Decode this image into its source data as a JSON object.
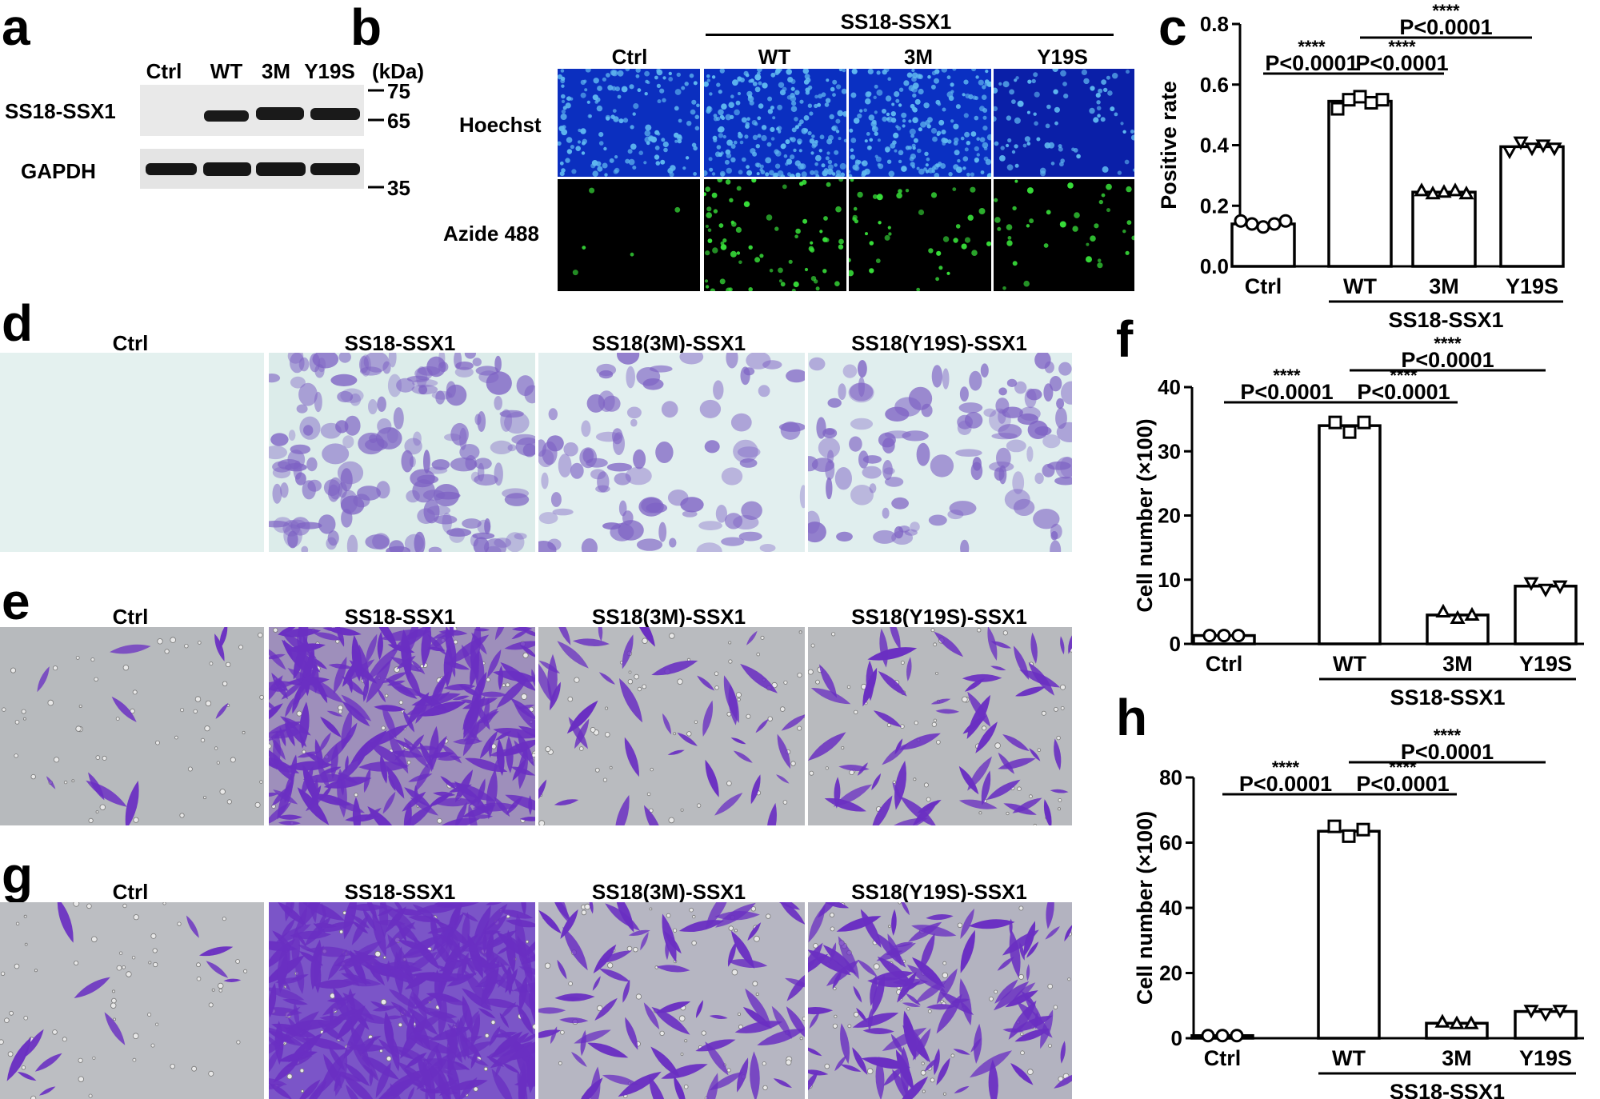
{
  "panel_letters": [
    "a",
    "b",
    "c",
    "d",
    "e",
    "f",
    "g",
    "h"
  ],
  "western": {
    "lanes": [
      "Ctrl",
      "WT",
      "3M",
      "Y19S"
    ],
    "kda_header": "(kDa)",
    "rows": [
      "SS18-SSX1",
      "GAPDH"
    ],
    "markers": [
      "75",
      "65",
      "35"
    ]
  },
  "microscopy_b": {
    "group_label": "SS18-SSX1",
    "columns": [
      "Ctrl",
      "WT",
      "3M",
      "Y19S"
    ],
    "rows": [
      "Hoechst",
      "Azide 488"
    ]
  },
  "stain_rows": {
    "columns": [
      "Ctrl",
      "SS18-SSX1",
      "SS18(3M)-SSX1",
      "SS18(Y19S)-SSX1"
    ]
  },
  "chart_data": [
    {
      "panel": "c",
      "type": "bar",
      "categories": [
        "Ctrl",
        "WT",
        "3M",
        "Y19S"
      ],
      "values": [
        0.14,
        0.545,
        0.245,
        0.395
      ],
      "points": [
        [
          0.15,
          0.14,
          0.13,
          0.14,
          0.15
        ],
        [
          0.52,
          0.55,
          0.56,
          0.54,
          0.55
        ],
        [
          0.25,
          0.24,
          0.245,
          0.25,
          0.24
        ],
        [
          0.38,
          0.41,
          0.39,
          0.4,
          0.39
        ]
      ],
      "markers": [
        "circle",
        "square",
        "triangle-up",
        "triangle-down"
      ],
      "ylabel": "Positive rate",
      "yticks": [
        "0.0",
        "0.2",
        "0.4",
        "0.6",
        "0.8"
      ],
      "ylim": [
        0,
        0.8
      ],
      "group_label": "SS18-SSX1",
      "comparisons": [
        {
          "from": 0,
          "to": 1,
          "stars": "****",
          "p": "P<0.0001"
        },
        {
          "from": 1,
          "to": 2,
          "stars": "****",
          "p": "P<0.0001"
        },
        {
          "from": 1,
          "to": 3,
          "stars": "****",
          "p": "P<0.0001"
        }
      ]
    },
    {
      "panel": "f",
      "type": "bar",
      "categories": [
        "Ctrl",
        "WT",
        "3M",
        "Y19S"
      ],
      "values": [
        1.3,
        34,
        4.5,
        9
      ],
      "points": [
        [
          1.3,
          1.3,
          1.3
        ],
        [
          34.5,
          33,
          34.5
        ],
        [
          5,
          4,
          4.5
        ],
        [
          9.5,
          8.5,
          9
        ]
      ],
      "markers": [
        "circle",
        "square",
        "triangle-up",
        "triangle-down"
      ],
      "ylabel": "Cell number (×100)",
      "yticks": [
        "0",
        "10",
        "20",
        "30",
        "40"
      ],
      "ylim": [
        0,
        40
      ],
      "group_label": "SS18-SSX1",
      "comparisons": [
        {
          "from": 0,
          "to": 1,
          "stars": "****",
          "p": "P<0.0001"
        },
        {
          "from": 1,
          "to": 2,
          "stars": "****",
          "p": "P<0.0001"
        },
        {
          "from": 1,
          "to": 3,
          "stars": "****",
          "p": "P<0.0001"
        }
      ]
    },
    {
      "panel": "h",
      "type": "bar",
      "categories": [
        "Ctrl",
        "WT",
        "3M",
        "Y19S"
      ],
      "values": [
        0.8,
        63.5,
        4.6,
        8.2
      ],
      "points": [
        [
          0.8,
          0.8,
          0.8
        ],
        [
          65,
          62,
          64
        ],
        [
          5,
          4.5,
          4.5
        ],
        [
          8.5,
          7.5,
          8.5
        ]
      ],
      "markers": [
        "circle",
        "square",
        "triangle-up",
        "triangle-down"
      ],
      "ylabel": "Cell number (×100)",
      "yticks": [
        "0",
        "20",
        "40",
        "60",
        "80"
      ],
      "ylim": [
        0,
        80
      ],
      "group_label": "SS18-SSX1",
      "comparisons": [
        {
          "from": 0,
          "to": 1,
          "stars": "****",
          "p": "P<0.0001"
        },
        {
          "from": 1,
          "to": 2,
          "stars": "****",
          "p": "P<0.0001"
        },
        {
          "from": 1,
          "to": 3,
          "stars": "****",
          "p": "P<0.0001"
        }
      ]
    }
  ]
}
